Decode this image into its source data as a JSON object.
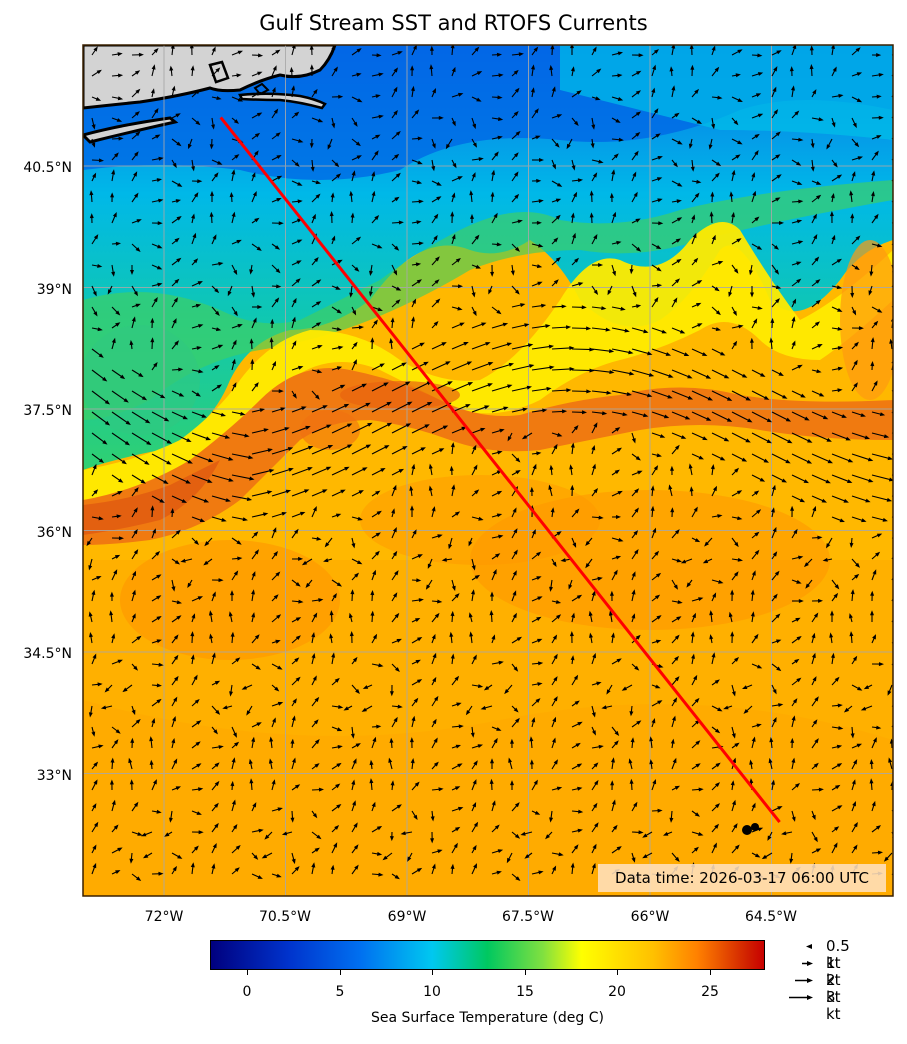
{
  "title": "Gulf Stream SST and RTOFS Currents",
  "data_time": "Data time: 2026-03-17 06:00 UTC",
  "colorbar": {
    "label": "Sea Surface Temperature (deg C)",
    "ticks": [
      "0",
      "5",
      "10",
      "15",
      "20",
      "25"
    ],
    "range": [
      -2,
      28
    ]
  },
  "axes": {
    "lon_labels": [
      "72°W",
      "70.5°W",
      "69°W",
      "67.5°W",
      "66°W",
      "64.5°W"
    ],
    "lat_labels": [
      "40.5°N",
      "39°N",
      "37.5°N",
      "36°N",
      "34.5°N",
      "33°N"
    ]
  },
  "legend": {
    "items": [
      {
        "label": "0.5 kt",
        "speed": 0.5
      },
      {
        "label": "1 kt",
        "speed": 1
      },
      {
        "label": "2 kt",
        "speed": 2
      },
      {
        "label": "3 kt",
        "speed": 3
      }
    ]
  },
  "route": {
    "color": "#ff0000",
    "start": {
      "lon": -71.3,
      "lat": 41.1
    },
    "end": {
      "lon": -64.4,
      "lat": 32.4
    }
  },
  "map_colors": {
    "land": "#d3d3d3",
    "coast": "#000000",
    "grid": "#b0b0b0",
    "frame": "#3a2000"
  }
}
